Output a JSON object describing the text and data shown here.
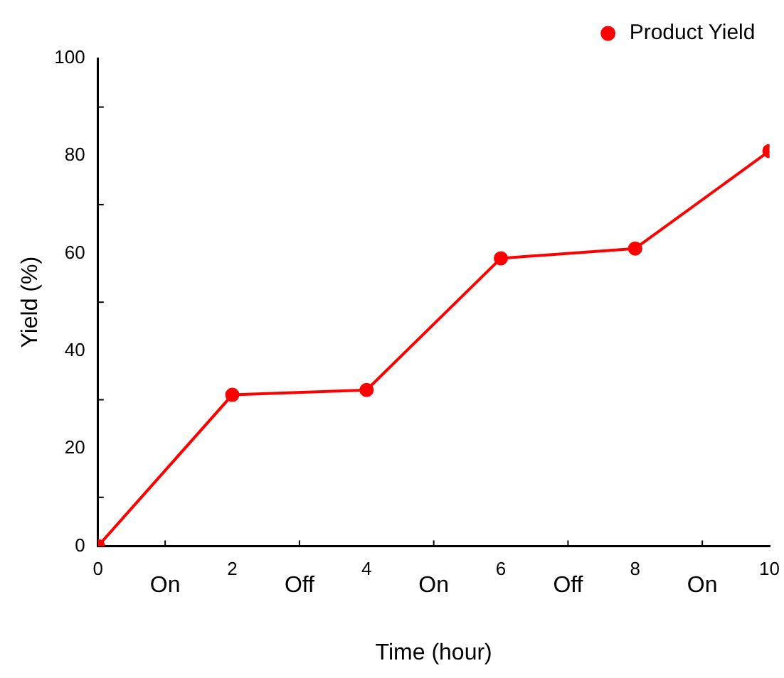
{
  "chart_data": {
    "type": "line",
    "xlabel": "Time (hour)",
    "ylabel": "Yield (%)",
    "x": [
      0,
      2,
      4,
      6,
      8,
      10
    ],
    "series": [
      {
        "name": "Product Yield",
        "color": "#ff0000",
        "values": [
          0,
          31,
          32,
          59,
          61,
          81
        ]
      }
    ],
    "xlim": [
      0,
      10
    ],
    "xticks": [
      0,
      2,
      4,
      6,
      8,
      10
    ],
    "ylim": [
      0,
      100
    ],
    "yticks": [
      0,
      20,
      40,
      60,
      80,
      100
    ],
    "annotations": [
      "On",
      "Off",
      "On",
      "Off",
      "On"
    ],
    "grid": false,
    "legend": "top right",
    "marker": "circle",
    "line_style": "solid"
  }
}
